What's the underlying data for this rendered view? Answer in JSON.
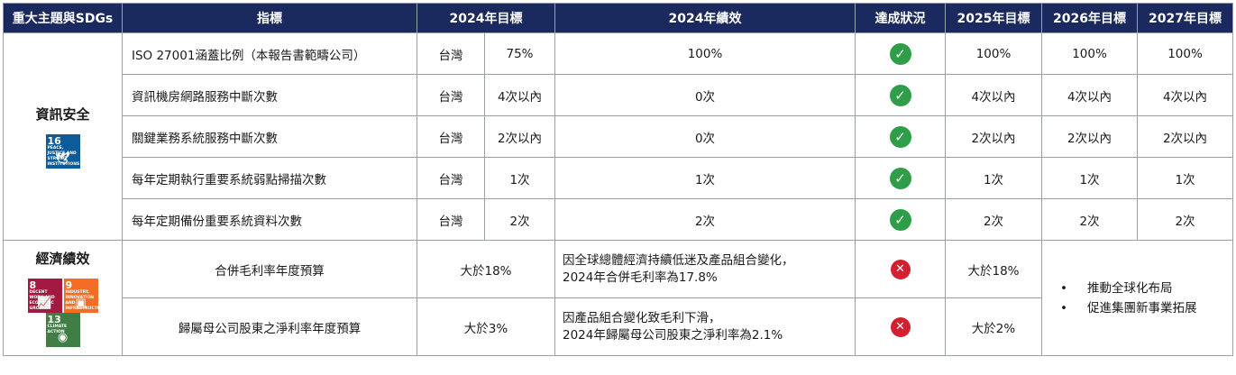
{
  "headers": [
    "重大主題與SDGs",
    "指標",
    "2024年目標",
    "2024年績效",
    "達成狀況",
    "2025年目標",
    "2026年目標",
    "2027年目標"
  ],
  "topics": {
    "info_security": {
      "label": "資訊安全",
      "sdg": {
        "number": "16",
        "text": "PEACE, JUSTICE AND STRONG INSTITUTIONS",
        "color": "#0d5c99"
      }
    },
    "economic": {
      "label": "經濟績效",
      "sdgs": [
        {
          "number": "8",
          "text": "DECENT WORK AND ECONOMIC GROWTH",
          "color": "#a21942"
        },
        {
          "number": "9",
          "text": "INDUSTRY, INNOVATION AND INFRASTRUCTURE",
          "color": "#f36d25"
        },
        {
          "number": "13",
          "text": "CLIMATE ACTION",
          "color": "#3f7e44"
        }
      ]
    }
  },
  "info_rows": [
    {
      "indicator": "ISO 27001涵蓋比例（本報告書範疇公司）",
      "region": "台灣",
      "target_2024": "75%",
      "perf_2024": "100%",
      "status": "achieved",
      "t2025": "100%",
      "t2026": "100%",
      "t2027": "100%"
    },
    {
      "indicator": "資訊機房網路服務中斷次數",
      "region": "台灣",
      "target_2024": "4次以內",
      "perf_2024": "0次",
      "status": "achieved",
      "t2025": "4次以內",
      "t2026": "4次以內",
      "t2027": "4次以內"
    },
    {
      "indicator": "關鍵業務系統服務中斷次數",
      "region": "台灣",
      "target_2024": "2次以內",
      "perf_2024": "0次",
      "status": "achieved",
      "t2025": "2次以內",
      "t2026": "2次以內",
      "t2027": "2次以內"
    },
    {
      "indicator": "每年定期執行重要系統弱點掃描次數",
      "region": "台灣",
      "target_2024": "1次",
      "perf_2024": "1次",
      "status": "achieved",
      "t2025": "1次",
      "t2026": "1次",
      "t2027": "1次"
    },
    {
      "indicator": "每年定期備份重要系統資料次數",
      "region": "台灣",
      "target_2024": "2次",
      "perf_2024": "2次",
      "status": "achieved",
      "t2025": "2次",
      "t2026": "2次",
      "t2027": "2次"
    }
  ],
  "econ_rows": [
    {
      "indicator": "合併毛利率年度預算",
      "target_2024": "大於18%",
      "perf_line1": "因全球總體經濟持續低迷及產品組合變化，",
      "perf_line2": "2024年合併毛利率為17.8%",
      "status": "not_achieved",
      "t2025": "大於18%"
    },
    {
      "indicator": "歸屬母公司股東之淨利率年度預算",
      "target_2024": "大於3%",
      "perf_line1": "因產品組合變化致毛利下滑，",
      "perf_line2": "2024年歸屬母公司股東之淨利率為2.1%",
      "status": "not_achieved",
      "t2025": "大於2%"
    }
  ],
  "econ_strategy": {
    "bullet": "•",
    "items": [
      "推動全球化布局",
      "促進集團新事業拓展"
    ]
  },
  "status_icons": {
    "achieved": "check-circle-icon",
    "not_achieved": "x-circle-icon"
  },
  "colors": {
    "header_bg": "#1b2a5e",
    "achieved": "#2e9e48",
    "not_achieved": "#d1202f"
  }
}
